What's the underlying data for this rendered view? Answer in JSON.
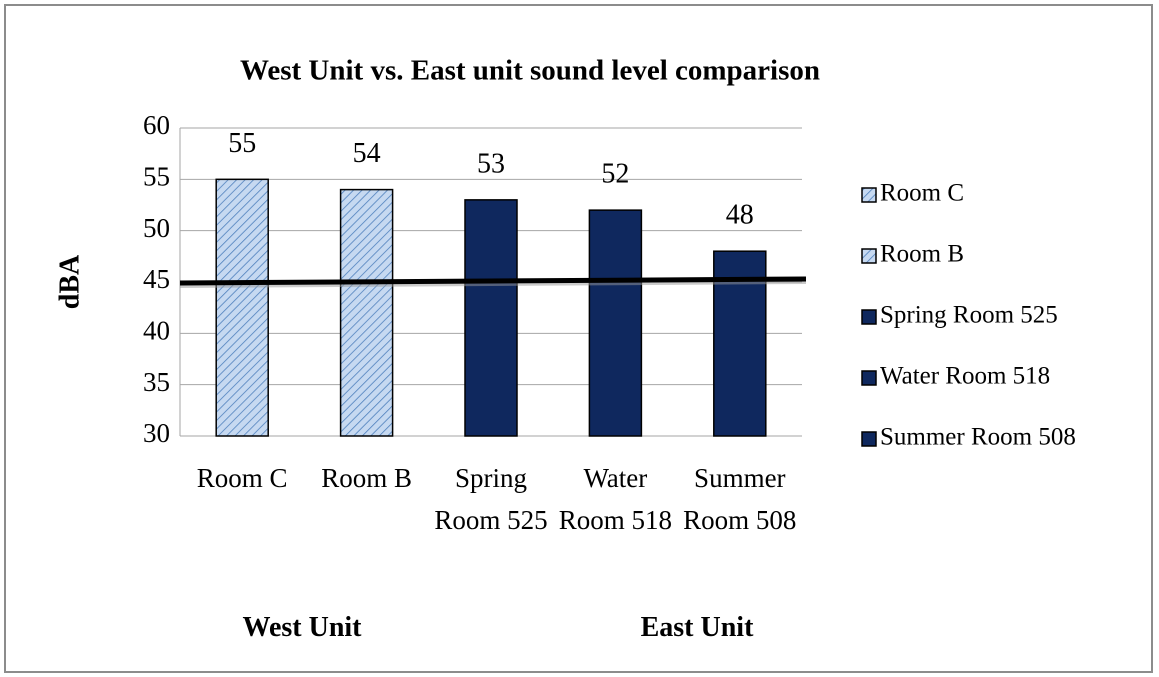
{
  "chart_data": {
    "type": "bar",
    "title": "West Unit vs. East unit sound level comparison",
    "ylabel": "dBA",
    "categories": [
      "Room C",
      "Room B",
      "Spring Room 525",
      "Water Room 518",
      "Summer Room 508"
    ],
    "values": [
      55,
      54,
      53,
      52,
      48
    ],
    "colors": [
      "#c6d9f1",
      "#c6d9f1",
      "#0f285e",
      "#0f285e",
      "#0f285e"
    ],
    "hatch": [
      true,
      true,
      false,
      false,
      false
    ],
    "ylim": [
      30,
      60
    ],
    "yticks": [
      30,
      35,
      40,
      45,
      50,
      55,
      60
    ],
    "grid": true,
    "reference_line": 45,
    "legend": "right",
    "group_labels": [
      "West Unit",
      "East Unit"
    ]
  }
}
